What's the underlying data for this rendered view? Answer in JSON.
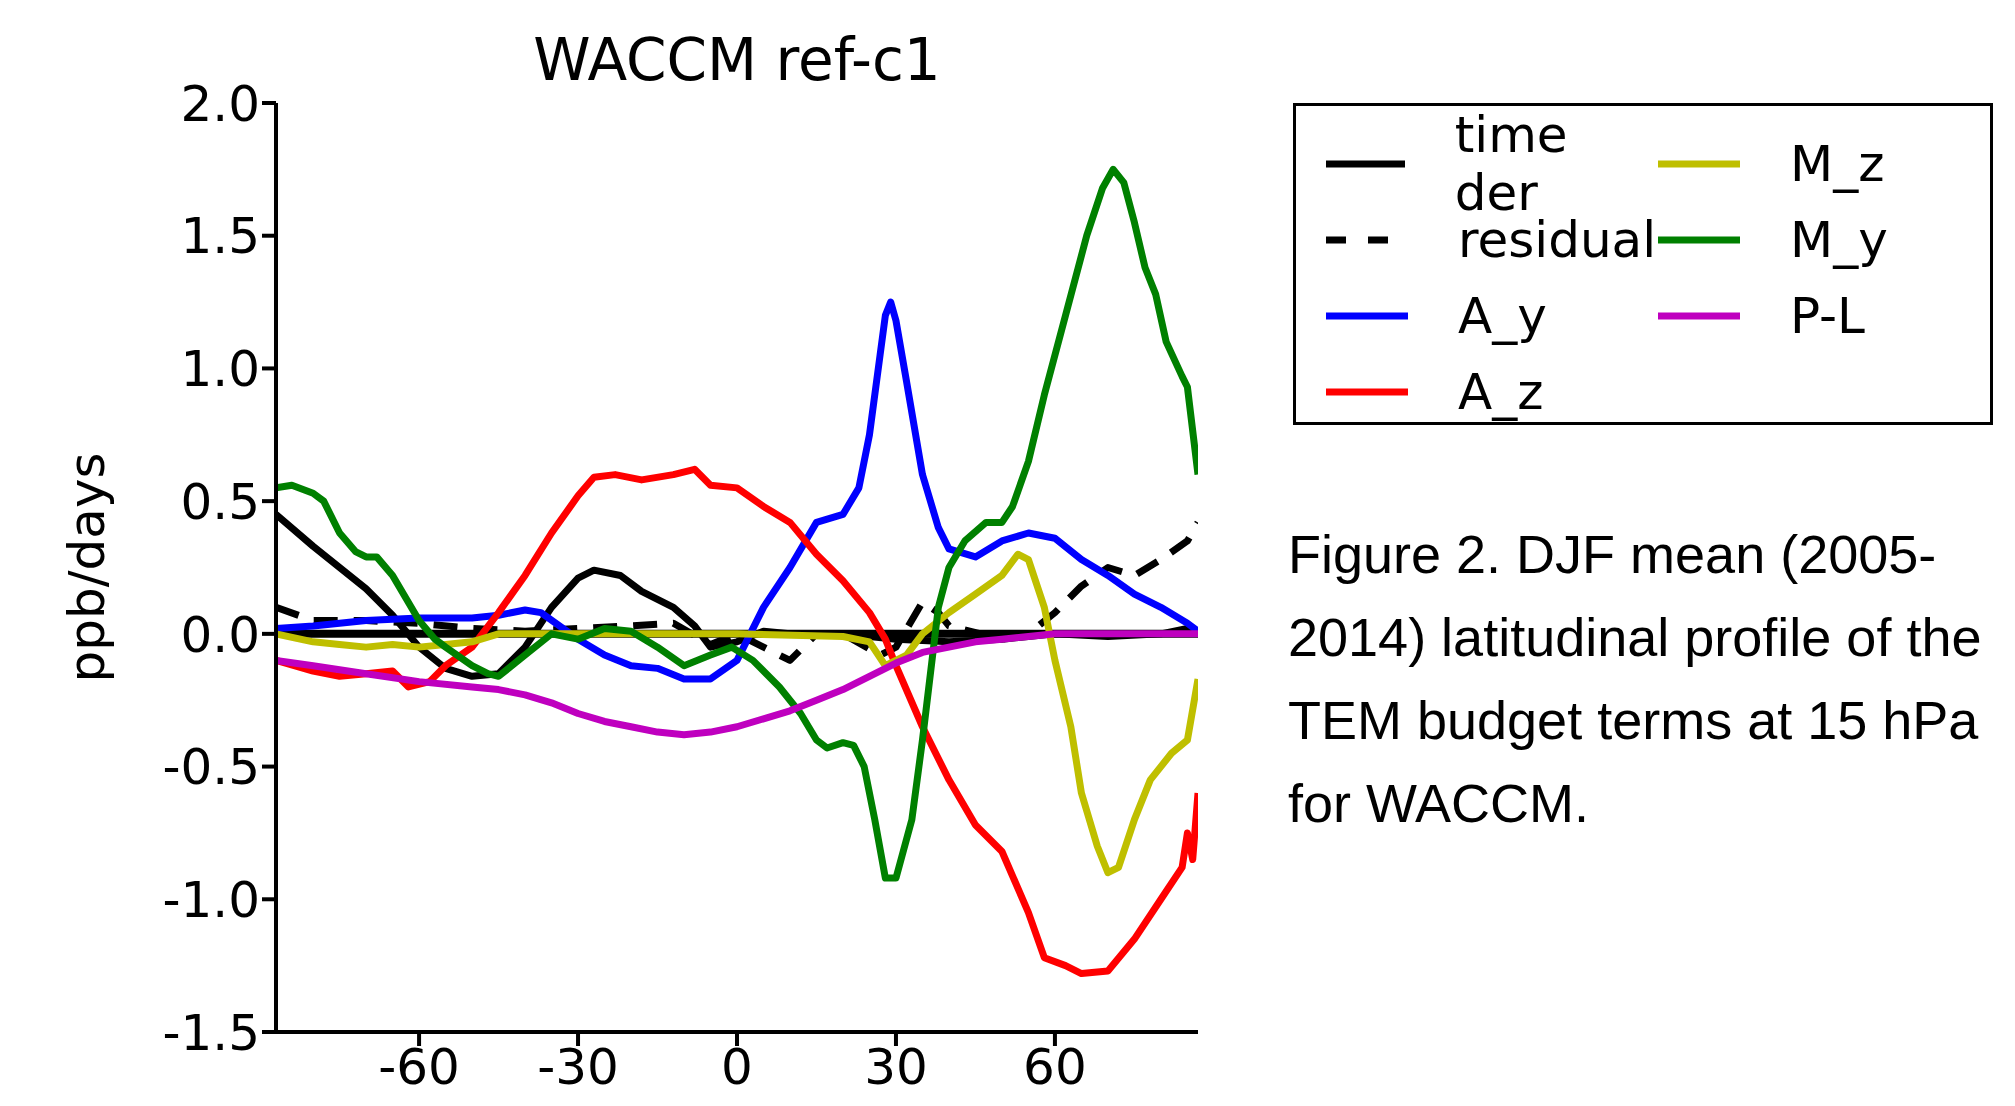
{
  "chart_data": {
    "type": "line",
    "title": "WACCM ref-c1",
    "ylabel": "ppb/days",
    "xlim": [
      -87,
      87
    ],
    "xticks": [
      -60,
      -30,
      0,
      30,
      60
    ],
    "ylim": [
      -1.5,
      2.0
    ],
    "yticks": [
      {
        "value": -1.5,
        "label": "-1.5"
      },
      {
        "value": -1,
        "label": "-1.0"
      },
      {
        "value": -0.5,
        "label": "-0.5"
      },
      {
        "value": 0,
        "label": "0.0"
      },
      {
        "value": 0.5,
        "label": "0.5"
      },
      {
        "value": 1,
        "label": "1.0"
      },
      {
        "value": 1.5,
        "label": "1.5"
      },
      {
        "value": 2,
        "label": "2.0"
      }
    ],
    "grid": false,
    "legend": "top right",
    "marker": "none",
    "line_style": "solid",
    "ref_lines": [
      {
        "axis": "y",
        "value": 0,
        "color": "#000000"
      }
    ],
    "annotations": [
      "Figure 2. DJF mean (2005-2014) latitudinal profile of the TEM budget terms at 15 hPa for WACCM."
    ],
    "series": [
      {
        "name": "time der",
        "color": "#000000",
        "x": [
          -87,
          -80,
          -75,
          -70,
          -65,
          -60,
          -55,
          -50,
          -45,
          -40,
          -35,
          -30,
          -27,
          -22,
          -18,
          -12,
          -8,
          -5,
          0,
          5,
          10,
          20,
          30,
          40,
          50,
          60,
          70,
          80,
          85,
          87
        ],
        "values": [
          0.45,
          0.33,
          0.25,
          0.17,
          0.07,
          -0.05,
          -0.13,
          -0.16,
          -0.15,
          -0.05,
          0.1,
          0.21,
          0.24,
          0.22,
          0.16,
          0.1,
          0.03,
          -0.05,
          -0.03,
          0.01,
          0,
          0,
          -0.02,
          -0.03,
          -0.02,
          0,
          -0.01,
          0,
          0.02,
          0.01
        ]
      },
      {
        "name": "residual",
        "color": "#000000",
        "line_style": "dashed",
        "x": [
          -87,
          -80,
          -70,
          -60,
          -50,
          -40,
          -30,
          -20,
          -12,
          -5,
          0,
          5,
          10,
          15,
          20,
          27,
          30,
          35,
          38,
          40,
          50,
          55,
          60,
          65,
          70,
          75,
          80,
          85,
          87
        ],
        "values": [
          0.1,
          0.05,
          0.05,
          0.04,
          0.02,
          0.01,
          0.02,
          0.03,
          0.04,
          -0.04,
          0,
          -0.05,
          -0.1,
          0,
          0,
          -0.08,
          -0.05,
          0.12,
          0.08,
          0.03,
          -0.02,
          0,
          0.08,
          0.18,
          0.25,
          0.22,
          0.28,
          0.35,
          0.42
        ]
      },
      {
        "name": "A_y",
        "color": "#0000ff",
        "x": [
          -87,
          -80,
          -70,
          -60,
          -50,
          -45,
          -40,
          -37,
          -30,
          -25,
          -20,
          -15,
          -10,
          -5,
          0,
          5,
          10,
          15,
          20,
          23,
          25,
          27,
          28,
          29,
          30,
          32,
          35,
          38,
          40,
          45,
          50,
          55,
          60,
          65,
          70,
          75,
          80,
          85,
          87
        ],
        "values": [
          0.02,
          0.03,
          0.05,
          0.06,
          0.06,
          0.07,
          0.09,
          0.08,
          -0.02,
          -0.08,
          -0.12,
          -0.13,
          -0.17,
          -0.17,
          -0.1,
          0.1,
          0.25,
          0.42,
          0.45,
          0.55,
          0.75,
          1.05,
          1.2,
          1.25,
          1.18,
          0.95,
          0.6,
          0.4,
          0.32,
          0.29,
          0.35,
          0.38,
          0.36,
          0.28,
          0.22,
          0.15,
          0.1,
          0.04,
          0.01
        ]
      },
      {
        "name": "A_z",
        "color": "#ff0000",
        "x": [
          -87,
          -80,
          -75,
          -70,
          -65,
          -62,
          -58,
          -55,
          -50,
          -45,
          -40,
          -35,
          -30,
          -27,
          -23,
          -18,
          -12,
          -8,
          -5,
          0,
          5,
          10,
          15,
          20,
          25,
          28,
          30,
          35,
          40,
          45,
          50,
          55,
          58,
          62,
          65,
          70,
          75,
          80,
          84,
          85,
          86,
          87
        ],
        "values": [
          -0.1,
          -0.14,
          -0.16,
          -0.15,
          -0.14,
          -0.2,
          -0.18,
          -0.12,
          -0.05,
          0.08,
          0.22,
          0.38,
          0.52,
          0.59,
          0.6,
          0.58,
          0.6,
          0.62,
          0.56,
          0.55,
          0.48,
          0.42,
          0.3,
          0.2,
          0.08,
          -0.02,
          -0.12,
          -0.35,
          -0.55,
          -0.72,
          -0.82,
          -1.05,
          -1.22,
          -1.25,
          -1.28,
          -1.27,
          -1.15,
          -1,
          -0.88,
          -0.75,
          -0.85,
          -0.6
        ]
      },
      {
        "name": "M_z",
        "color": "#bfbf00",
        "x": [
          -87,
          -80,
          -75,
          -70,
          -65,
          -60,
          -55,
          -50,
          -45,
          -40,
          0,
          20,
          25,
          28,
          32,
          35,
          40,
          45,
          50,
          53,
          55,
          58,
          60,
          63,
          65,
          68,
          70,
          72,
          75,
          78,
          82,
          85,
          87
        ],
        "values": [
          0,
          -0.03,
          -0.04,
          -0.05,
          -0.04,
          -0.05,
          -0.04,
          -0.03,
          0,
          0,
          0,
          -0.01,
          -0.03,
          -0.12,
          -0.08,
          0,
          0.08,
          0.15,
          0.22,
          0.3,
          0.28,
          0.1,
          -0.1,
          -0.35,
          -0.6,
          -0.8,
          -0.9,
          -0.88,
          -0.7,
          -0.55,
          -0.45,
          -0.4,
          -0.17
        ]
      },
      {
        "name": "M_y",
        "color": "#008000",
        "x": [
          -87,
          -84,
          -80,
          -78,
          -75,
          -72,
          -70,
          -68,
          -65,
          -60,
          -57,
          -55,
          -50,
          -47,
          -45,
          -40,
          -35,
          -30,
          -25,
          -20,
          -15,
          -10,
          -5,
          -1,
          3,
          8,
          12,
          15,
          17,
          20,
          22,
          24,
          26,
          28,
          30,
          33,
          35,
          38,
          40,
          43,
          47,
          50,
          52,
          55,
          58,
          62,
          66,
          69,
          71,
          73,
          75,
          77,
          79,
          81,
          84,
          85,
          87
        ],
        "values": [
          0.55,
          0.56,
          0.53,
          0.5,
          0.38,
          0.31,
          0.29,
          0.29,
          0.22,
          0.05,
          -0.02,
          -0.05,
          -0.12,
          -0.15,
          -0.16,
          -0.08,
          0,
          -0.02,
          0.02,
          0.01,
          -0.05,
          -0.12,
          -0.08,
          -0.05,
          -0.1,
          -0.2,
          -0.3,
          -0.4,
          -0.43,
          -0.41,
          -0.42,
          -0.5,
          -0.7,
          -0.92,
          -0.92,
          -0.7,
          -0.4,
          0.1,
          0.25,
          0.35,
          0.42,
          0.42,
          0.48,
          0.65,
          0.9,
          1.2,
          1.5,
          1.68,
          1.75,
          1.7,
          1.55,
          1.38,
          1.28,
          1.1,
          0.97,
          0.93,
          0.6
        ]
      },
      {
        "name": "P-L",
        "color": "#bf00bf",
        "x": [
          -87,
          -80,
          -70,
          -60,
          -50,
          -45,
          -40,
          -35,
          -30,
          -25,
          -20,
          -15,
          -10,
          -5,
          0,
          5,
          10,
          15,
          20,
          25,
          30,
          35,
          40,
          45,
          50,
          55,
          60,
          70,
          87
        ],
        "values": [
          -0.1,
          -0.12,
          -0.15,
          -0.18,
          -0.2,
          -0.21,
          -0.23,
          -0.26,
          -0.3,
          -0.33,
          -0.35,
          -0.37,
          -0.38,
          -0.37,
          -0.35,
          -0.32,
          -0.29,
          -0.25,
          -0.21,
          -0.16,
          -0.11,
          -0.07,
          -0.05,
          -0.03,
          -0.02,
          -0.01,
          0,
          0,
          0
        ]
      }
    ]
  }
}
